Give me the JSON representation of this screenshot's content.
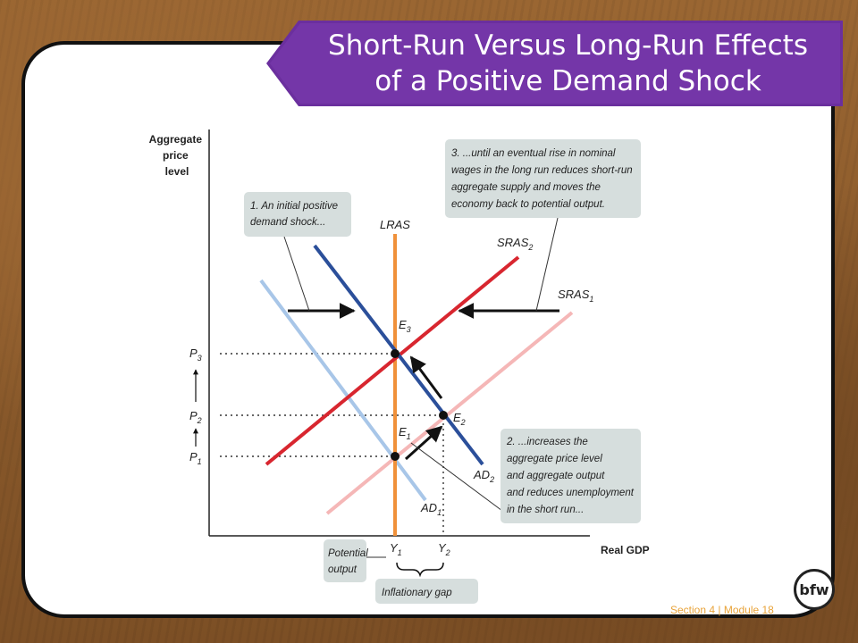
{
  "slide": {
    "title_line1": "Short-Run Versus Long-Run Effects",
    "title_line2": "of a Positive Demand Shock",
    "footer": "Section 4 | Module 18",
    "logo": "bfw"
  },
  "chart_data": {
    "type": "diagram",
    "y_axis_label": [
      "Aggregate",
      "price",
      "level"
    ],
    "x_axis_label": "Real GDP",
    "curves": {
      "lras": "LRAS",
      "sras1": {
        "base": "SRAS",
        "sub": "1"
      },
      "sras2": {
        "base": "SRAS",
        "sub": "2"
      },
      "ad1": {
        "base": "AD",
        "sub": "1"
      },
      "ad2": {
        "base": "AD",
        "sub": "2"
      }
    },
    "equilibria": {
      "e1": {
        "base": "E",
        "sub": "1"
      },
      "e2": {
        "base": "E",
        "sub": "2"
      },
      "e3": {
        "base": "E",
        "sub": "3"
      }
    },
    "price_levels": {
      "p1": {
        "base": "P",
        "sub": "1"
      },
      "p2": {
        "base": "P",
        "sub": "2"
      },
      "p3": {
        "base": "P",
        "sub": "3"
      }
    },
    "outputs": {
      "y1": {
        "base": "Y",
        "sub": "1"
      },
      "y2": {
        "base": "Y",
        "sub": "2"
      }
    },
    "callouts": {
      "c1": [
        "1. An initial positive",
        "demand shock..."
      ],
      "c2": [
        "2. ...increases the",
        "aggregate price level",
        "and aggregate output",
        "and reduces unemployment",
        "in the short run..."
      ],
      "c3": [
        "3. ...until an eventual rise in nominal",
        "wages in the long run reduces short-run",
        "aggregate supply and moves the",
        "economy back to potential output."
      ],
      "potential": [
        "Potential",
        "output"
      ],
      "gap": "Inflationary gap"
    },
    "colors": {
      "lras": "#f0913a",
      "sras1": "#f5b7b7",
      "sras2": "#d8262f",
      "ad1": "#a8c6e8",
      "ad2": "#2b4f9a",
      "callout_bg": "#d6dedd",
      "banner": "#7436a8"
    }
  }
}
